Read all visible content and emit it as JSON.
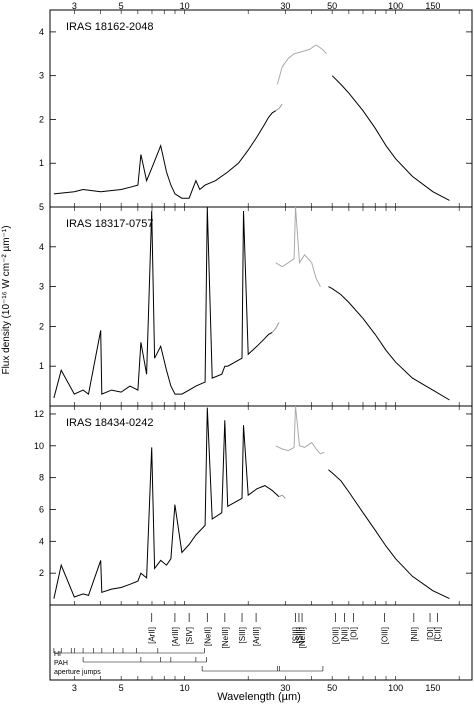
{
  "figure": {
    "xlabel": "Wavelength (µm)",
    "ylabel": "Flux density (10⁻¹⁶ W cm⁻² µm⁻¹)"
  },
  "chart_data": [
    {
      "type": "line",
      "title": "IRAS 18162-2048",
      "x_scale": "log",
      "xlim": [
        2.3,
        230
      ],
      "ylim": [
        0,
        4.5
      ],
      "yticks": [
        1,
        2,
        3,
        4
      ],
      "top_xticks": [
        3,
        5,
        10,
        30,
        50,
        100,
        150
      ],
      "series": [
        {
          "x": [
            2.4,
            3,
            3.3,
            4,
            5,
            5.5,
            6,
            6.2,
            6.6,
            7,
            7.7,
            8.2,
            8.6,
            9,
            9.7,
            10.5,
            11.3,
            11.8,
            12.5,
            14,
            16,
            18,
            20,
            22,
            24,
            25,
            26,
            27
          ],
          "y": [
            0.3,
            0.35,
            0.4,
            0.35,
            0.4,
            0.45,
            0.5,
            1.2,
            0.6,
            0.9,
            1.4,
            0.8,
            0.5,
            0.3,
            0.2,
            0.2,
            0.6,
            0.4,
            0.5,
            0.6,
            0.8,
            1.0,
            1.3,
            1.6,
            1.9,
            2.05,
            2.15,
            2.2
          ],
          "color": "#000"
        },
        {
          "x": [
            27,
            28,
            29
          ],
          "y": [
            2.2,
            2.25,
            2.35
          ],
          "color": "#999"
        },
        {
          "x": [
            27.5,
            29,
            31,
            33,
            36,
            39,
            42,
            45,
            47
          ],
          "y": [
            2.8,
            3.2,
            3.4,
            3.5,
            3.55,
            3.6,
            3.7,
            3.6,
            3.5
          ],
          "color": "#aaa"
        },
        {
          "x": [
            50,
            55,
            60,
            70,
            80,
            90,
            100,
            120,
            150,
            180
          ],
          "y": [
            3.0,
            2.8,
            2.6,
            2.2,
            1.8,
            1.4,
            1.1,
            0.7,
            0.35,
            0.15
          ],
          "color": "#000"
        }
      ]
    },
    {
      "type": "line",
      "title": "IRAS 18317-0757",
      "x_scale": "log",
      "xlim": [
        2.3,
        230
      ],
      "ylim": [
        0,
        5
      ],
      "yticks": [
        1,
        2,
        3,
        4,
        5
      ],
      "series": [
        {
          "x": [
            2.4,
            2.6,
            3,
            3.3,
            3.5,
            4,
            4.05,
            4.5,
            5,
            5.5,
            6,
            6.2,
            6.6,
            6.98,
            7.2,
            7.7,
            8.2,
            8.6,
            9,
            9.7,
            10.5,
            11.3,
            12.5,
            12.8,
            13.5,
            15,
            15.5,
            16,
            18.7,
            19,
            20,
            22,
            24,
            25,
            26
          ],
          "y": [
            0.2,
            0.9,
            0.3,
            0.4,
            0.3,
            1.9,
            0.3,
            0.4,
            0.35,
            0.5,
            0.4,
            1.6,
            0.8,
            4.9,
            1.2,
            1.5,
            0.9,
            0.5,
            0.3,
            0.3,
            0.4,
            0.5,
            0.6,
            5.0,
            0.7,
            0.8,
            1.0,
            1.0,
            1.2,
            4.9,
            1.3,
            1.5,
            1.7,
            1.8,
            1.85
          ],
          "color": "#000"
        },
        {
          "x": [
            26,
            27,
            28
          ],
          "y": [
            1.85,
            1.95,
            2.1
          ],
          "color": "#999"
        },
        {
          "x": [
            27,
            29,
            31,
            33,
            33.5,
            35,
            37,
            40,
            42,
            44
          ],
          "y": [
            3.6,
            3.5,
            3.6,
            3.7,
            5.0,
            3.6,
            3.8,
            3.6,
            3.2,
            3.0
          ],
          "color": "#aaa"
        },
        {
          "x": [
            48,
            50,
            55,
            60,
            70,
            80,
            90,
            100,
            120,
            150,
            180
          ],
          "y": [
            3.0,
            2.95,
            2.8,
            2.6,
            2.2,
            1.8,
            1.4,
            1.1,
            0.7,
            0.4,
            0.15
          ],
          "color": "#000"
        }
      ]
    },
    {
      "type": "line",
      "title": "IRAS 18434-0242",
      "x_scale": "log",
      "xlim": [
        2.3,
        230
      ],
      "ylim": [
        0,
        12.5
      ],
      "yticks": [
        2,
        4,
        6,
        8,
        10,
        12
      ],
      "series": [
        {
          "x": [
            2.4,
            2.6,
            3,
            3.3,
            3.5,
            4,
            4.05,
            4.5,
            5,
            5.5,
            6,
            6.2,
            6.6,
            6.98,
            7.2,
            7.7,
            8.2,
            8.6,
            8.99,
            9.7,
            10.5,
            11.3,
            12.5,
            12.8,
            13.5,
            15,
            15.5,
            16,
            18.7,
            19,
            20,
            22,
            24,
            26,
            28
          ],
          "y": [
            0.4,
            2.5,
            0.5,
            0.7,
            0.6,
            2.8,
            0.8,
            1.0,
            1.1,
            1.3,
            1.5,
            2.0,
            1.7,
            9.9,
            2.3,
            2.8,
            2.5,
            2.9,
            6.3,
            3.3,
            3.8,
            4.4,
            5.0,
            12.4,
            5.4,
            5.8,
            11.6,
            6.2,
            6.7,
            11.3,
            6.9,
            7.3,
            7.5,
            7.2,
            6.8
          ],
          "color": "#000"
        },
        {
          "x": [
            28,
            29,
            30
          ],
          "y": [
            6.8,
            6.9,
            6.7
          ],
          "color": "#999"
        },
        {
          "x": [
            27,
            29,
            31,
            33,
            33.5,
            35,
            37,
            40,
            42,
            44,
            46
          ],
          "y": [
            10.0,
            9.8,
            9.7,
            9.9,
            12.5,
            10.0,
            9.9,
            10.2,
            9.8,
            9.5,
            9.6
          ],
          "color": "#aaa"
        },
        {
          "x": [
            48,
            50,
            55,
            60,
            70,
            80,
            90,
            100,
            120,
            150,
            180
          ],
          "y": [
            8.5,
            8.3,
            7.8,
            7.1,
            5.8,
            4.7,
            3.7,
            2.9,
            1.8,
            0.9,
            0.4
          ],
          "color": "#000"
        }
      ]
    }
  ],
  "bottom_axis": {
    "xticks": [
      3,
      5,
      10,
      30,
      50,
      100,
      150
    ],
    "lines": [
      {
        "label": "[ArII]",
        "x": 6.98
      },
      {
        "label": "[ArIII]",
        "x": 8.99
      },
      {
        "label": "[SIV]",
        "x": 10.5
      },
      {
        "label": "[NeII]",
        "x": 12.8
      },
      {
        "label": "[NeIII]",
        "x": 15.5
      },
      {
        "label": "[SIII]",
        "x": 18.7
      },
      {
        "label": "[ArIII]",
        "x": 21.8
      },
      {
        "label": "[SIII]",
        "x": 33.5
      },
      {
        "label": "[SiII]",
        "x": 34.8
      },
      {
        "label": "[NeIII]",
        "x": 36.0
      },
      {
        "label": "[OIII]",
        "x": 51.8
      },
      {
        "label": "[NII]",
        "x": 57.3
      },
      {
        "label": "[OI]",
        "x": 63.2
      },
      {
        "label": "[OIII]",
        "x": 88.4
      },
      {
        "label": "[NII]",
        "x": 121.9
      },
      {
        "label": "[OI]",
        "x": 145.5
      },
      {
        "label": "[CII]",
        "x": 157.7
      }
    ],
    "markers": [
      {
        "label": "HI",
        "x": [
          2.4,
          2.6,
          2.9,
          3.0,
          3.3,
          3.7,
          4.05,
          4.6,
          5.1,
          5.9,
          7.46,
          12.4
        ]
      },
      {
        "label": "PAH",
        "x": [
          3.3,
          6.2,
          7.7,
          8.6,
          11.3,
          12.7
        ]
      },
      {
        "label": "aperture jumps",
        "x": [
          12.1,
          27.5,
          28.2,
          45.2
        ]
      }
    ]
  }
}
